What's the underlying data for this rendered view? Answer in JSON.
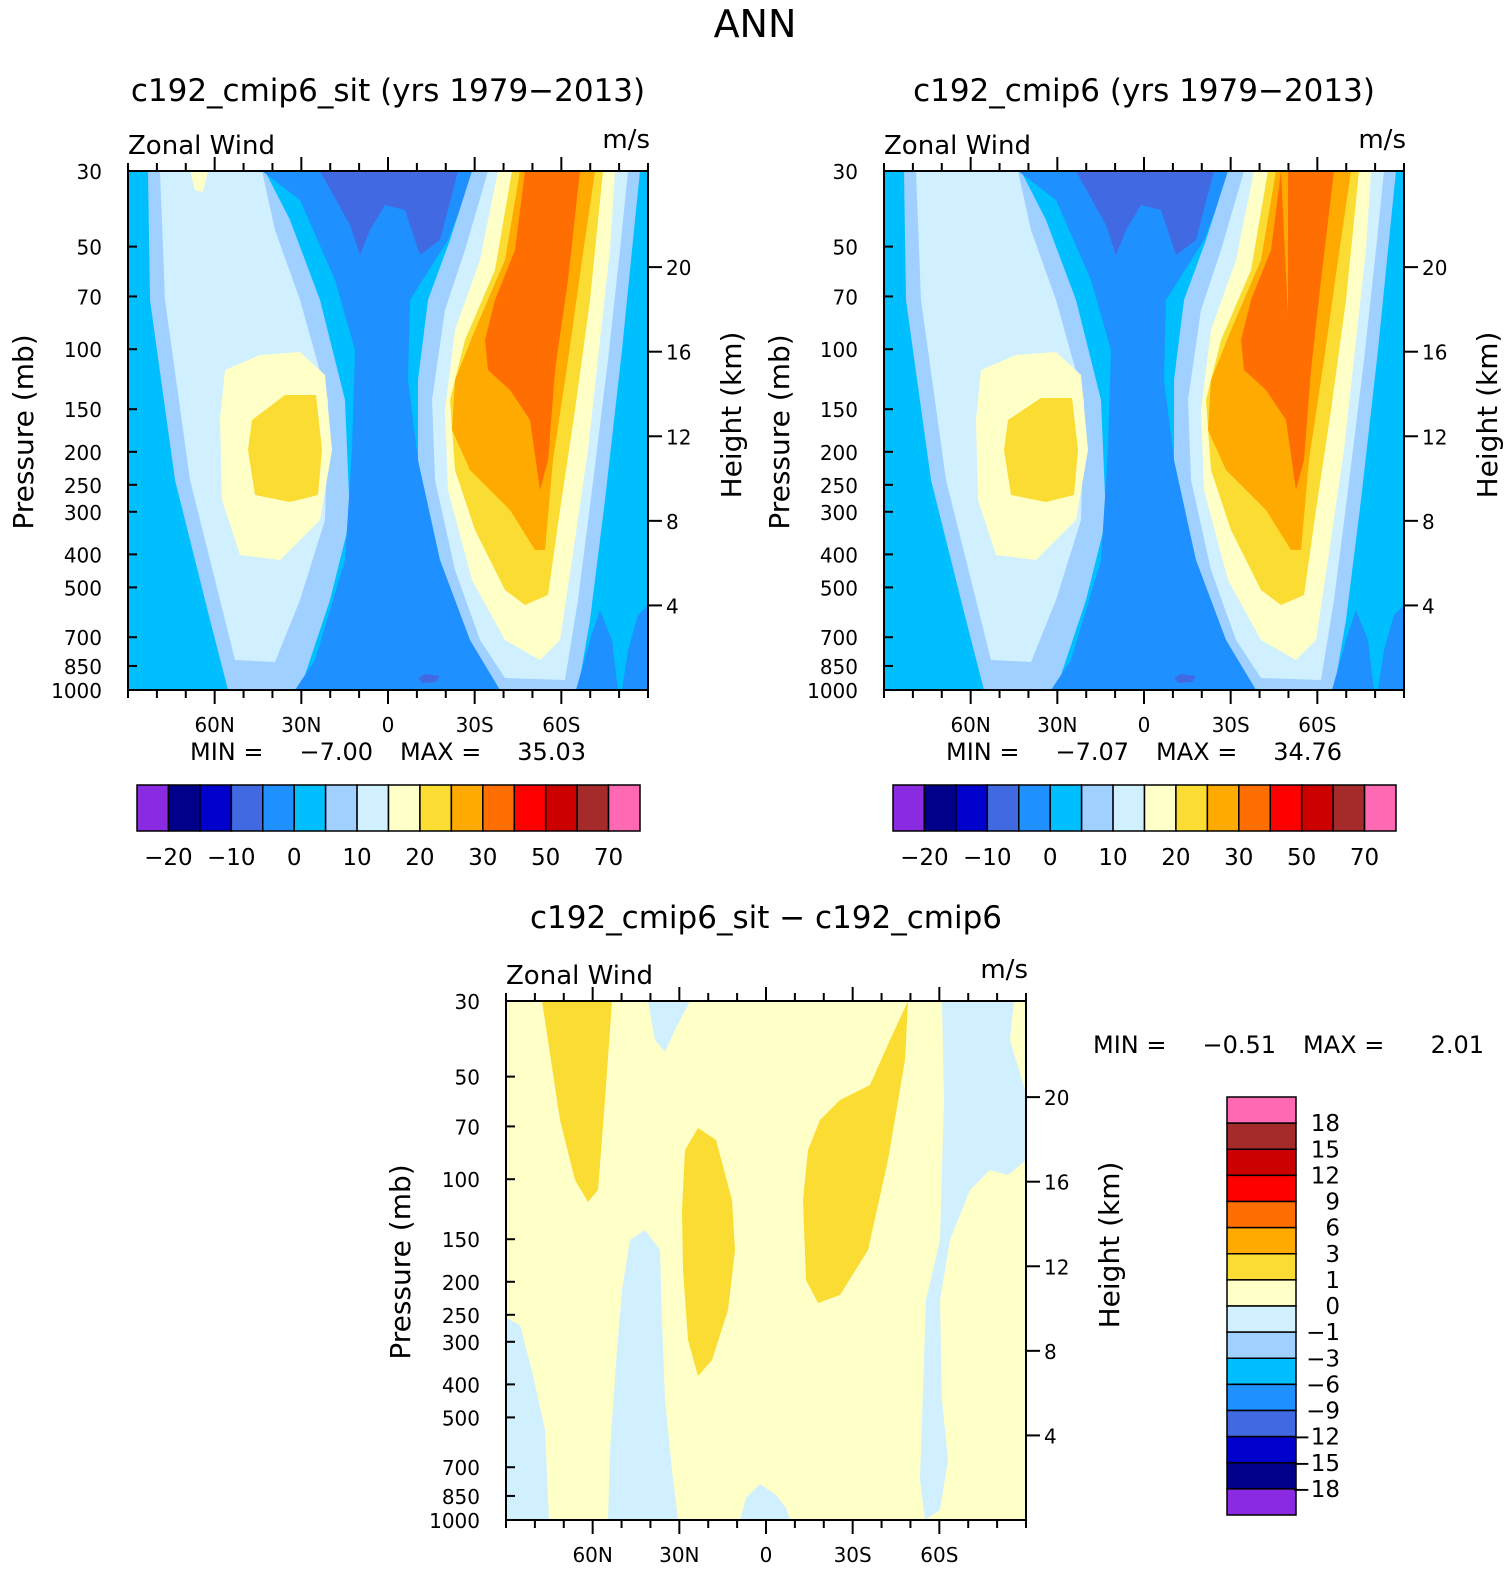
{
  "figure": {
    "season": "ANN"
  },
  "chart_data": [
    {
      "type": "contour",
      "title": "c192_cmip6_sit (yrs 1979−2013)",
      "variable_label": "Zonal Wind",
      "units": "m/s",
      "ylabel": "Pressure (mb)",
      "y2label": "Height (km)",
      "y_ticks": [
        "30",
        "50",
        "70",
        "100",
        "150",
        "200",
        "250",
        "300",
        "400",
        "500",
        "700",
        "850",
        "1000"
      ],
      "y2_ticks": [
        "20",
        "16",
        "12",
        "8",
        "4"
      ],
      "x_ticks": [
        "60N",
        "30N",
        "0",
        "30S",
        "60S"
      ],
      "min_label": "MIN =",
      "min": "−7.00",
      "max_label": "MAX =",
      "max": "35.03",
      "colorbar": {
        "colors": [
          "#8a2be2",
          "#00008b",
          "#0000cd",
          "#4169e1",
          "#1e90ff",
          "#00bfff",
          "#a0d0ff",
          "#d0f0ff",
          "#ffffc8",
          "#fadc32",
          "#ffaa00",
          "#ff6e00",
          "#ff0000",
          "#cd0000",
          "#a52a2a",
          "#ff69b4"
        ],
        "labels": [
          "−20",
          "−10",
          "0",
          "10",
          "20",
          "30",
          "50",
          "70"
        ]
      }
    },
    {
      "type": "contour",
      "title": "c192_cmip6 (yrs 1979−2013)",
      "variable_label": "Zonal Wind",
      "units": "m/s",
      "ylabel": "Pressure (mb)",
      "y2label": "Height (km)",
      "y_ticks": [
        "30",
        "50",
        "70",
        "100",
        "150",
        "200",
        "250",
        "300",
        "400",
        "500",
        "700",
        "850",
        "1000"
      ],
      "y2_ticks": [
        "20",
        "16",
        "12",
        "8",
        "4"
      ],
      "x_ticks": [
        "60N",
        "30N",
        "0",
        "30S",
        "60S"
      ],
      "min_label": "MIN =",
      "min": "−7.07",
      "max_label": "MAX =",
      "max": "34.76",
      "colorbar": {
        "colors": [
          "#8a2be2",
          "#00008b",
          "#0000cd",
          "#4169e1",
          "#1e90ff",
          "#00bfff",
          "#a0d0ff",
          "#d0f0ff",
          "#ffffc8",
          "#fadc32",
          "#ffaa00",
          "#ff6e00",
          "#ff0000",
          "#cd0000",
          "#a52a2a",
          "#ff69b4"
        ],
        "labels": [
          "−20",
          "−10",
          "0",
          "10",
          "20",
          "30",
          "50",
          "70"
        ]
      }
    },
    {
      "type": "contour",
      "title": "c192_cmip6_sit − c192_cmip6",
      "variable_label": "Zonal Wind",
      "units": "m/s",
      "ylabel": "Pressure (mb)",
      "y2label": "Height (km)",
      "y_ticks": [
        "30",
        "50",
        "70",
        "100",
        "150",
        "200",
        "250",
        "300",
        "400",
        "500",
        "700",
        "850",
        "1000"
      ],
      "y2_ticks": [
        "20",
        "16",
        "12",
        "8",
        "4"
      ],
      "x_ticks": [
        "60N",
        "30N",
        "0",
        "30S",
        "60S"
      ],
      "min_label": "MIN =",
      "min": "−0.51",
      "max_label": "MAX =",
      "max": "2.01",
      "colorbar": {
        "colors": [
          "#ff69b4",
          "#a52a2a",
          "#cd0000",
          "#ff0000",
          "#ff6e00",
          "#ffaa00",
          "#fadc32",
          "#ffffc8",
          "#d0f0ff",
          "#a0d0ff",
          "#00bfff",
          "#1e90ff",
          "#4169e1",
          "#0000cd",
          "#00008b",
          "#8a2be2"
        ],
        "labels": [
          "18",
          "15",
          "12",
          "9",
          "6",
          "3",
          "1",
          "0",
          "−1",
          "−3",
          "−6",
          "−9",
          "−12",
          "−15",
          "−18"
        ]
      }
    }
  ]
}
